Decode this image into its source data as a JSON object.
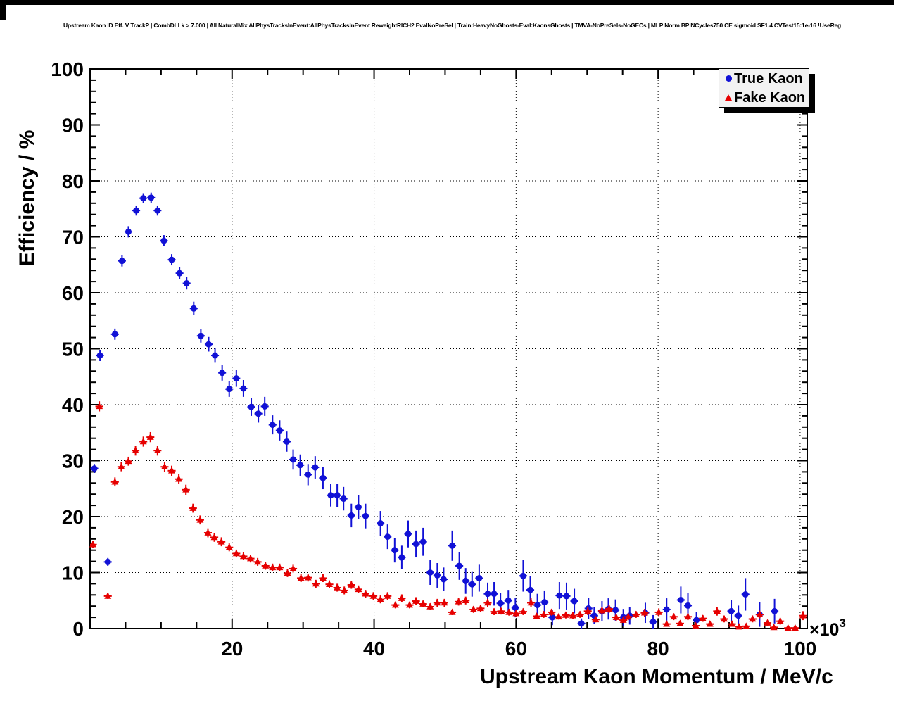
{
  "header": {
    "title": "Upstream Kaon ID Eff. V TrackP | CombDLLk > 7.000 | All NaturalMix AllPhysTracksInEvent:AllPhysTracksInEvent ReweightRICH2 EvalNoPreSel | Train:HeavyNoGhosts-Eval:KaonsGhosts | TMVA-NoPreSels-NoGECs | MLP Norm BP NCycles750 CE sigmoid SF1.4 CVTest15:1e-16 !UseReg"
  },
  "chart_data": {
    "type": "scatter",
    "title": "Upstream Kaon ID Eff. V TrackP",
    "xlabel": "Upstream Kaon Momentum / MeV/c",
    "ylabel": "Efficiency / %",
    "x_axis_multiplier": "×10³",
    "xlim": [
      0,
      101
    ],
    "ylim": [
      0,
      100
    ],
    "x_ticks": [
      20,
      40,
      60,
      80,
      100
    ],
    "y_ticks": [
      0,
      10,
      20,
      30,
      40,
      50,
      60,
      70,
      80,
      90,
      100
    ],
    "x_minor_step": 5,
    "y_minor_step": 2,
    "grid": "dotted-at-major-ticks",
    "x_error_half_width": 0.55,
    "legend": {
      "position": "top-right",
      "entries": [
        {
          "label": "True Kaon",
          "marker": "circle",
          "color": "#1111d6"
        },
        {
          "label": "Fake Kaon",
          "marker": "triangle",
          "color": "#e60000"
        }
      ]
    },
    "series": [
      {
        "name": "True Kaon",
        "marker": "circle",
        "color": "#1111d6",
        "points": [
          [
            0.6,
            28.6,
            0.8
          ],
          [
            1.4,
            48.8,
            1.0
          ],
          [
            2.5,
            11.9,
            0.7
          ],
          [
            3.5,
            52.6,
            1.0
          ],
          [
            4.5,
            65.7,
            1.0
          ],
          [
            5.4,
            70.9,
            1.0
          ],
          [
            6.5,
            74.7,
            0.9
          ],
          [
            7.5,
            76.9,
            0.9
          ],
          [
            8.6,
            77.0,
            0.9
          ],
          [
            9.5,
            74.7,
            0.9
          ],
          [
            10.4,
            69.3,
            1.0
          ],
          [
            11.5,
            65.9,
            1.0
          ],
          [
            12.6,
            63.5,
            1.1
          ],
          [
            13.6,
            61.7,
            1.1
          ],
          [
            14.6,
            57.2,
            1.2
          ],
          [
            15.6,
            52.3,
            1.2
          ],
          [
            16.7,
            50.8,
            1.3
          ],
          [
            17.6,
            48.8,
            1.3
          ],
          [
            18.6,
            45.7,
            1.4
          ],
          [
            19.6,
            42.8,
            1.4
          ],
          [
            20.6,
            44.7,
            1.5
          ],
          [
            21.6,
            42.9,
            1.5
          ],
          [
            22.7,
            39.6,
            1.6
          ],
          [
            23.7,
            38.4,
            1.6
          ],
          [
            24.6,
            39.7,
            1.7
          ],
          [
            25.7,
            36.4,
            1.7
          ],
          [
            26.7,
            35.4,
            1.8
          ],
          [
            27.7,
            33.4,
            1.8
          ],
          [
            28.6,
            30.2,
            1.8
          ],
          [
            29.6,
            29.2,
            1.9
          ],
          [
            30.7,
            27.5,
            1.9
          ],
          [
            31.7,
            28.8,
            2.0
          ],
          [
            32.8,
            26.9,
            2.0
          ],
          [
            33.9,
            23.8,
            2.0
          ],
          [
            34.8,
            23.8,
            2.1
          ],
          [
            35.7,
            23.2,
            2.1
          ],
          [
            36.8,
            20.2,
            2.1
          ],
          [
            37.8,
            21.7,
            2.2
          ],
          [
            38.8,
            20.1,
            2.2
          ],
          [
            40.9,
            18.8,
            2.2
          ],
          [
            41.9,
            16.4,
            2.2
          ],
          [
            42.9,
            14.0,
            2.2
          ],
          [
            43.9,
            12.7,
            2.1
          ],
          [
            44.8,
            16.9,
            2.4
          ],
          [
            45.9,
            15.1,
            2.4
          ],
          [
            46.9,
            15.5,
            2.5
          ],
          [
            47.9,
            10.0,
            2.2
          ],
          [
            48.9,
            9.5,
            2.2
          ],
          [
            49.8,
            8.8,
            2.1
          ],
          [
            51.0,
            14.8,
            2.7
          ],
          [
            52.0,
            11.2,
            2.5
          ],
          [
            52.9,
            8.5,
            2.3
          ],
          [
            53.8,
            7.9,
            2.2
          ],
          [
            54.8,
            9.0,
            2.4
          ],
          [
            56.0,
            6.2,
            2.0
          ],
          [
            56.9,
            6.2,
            2.1
          ],
          [
            57.8,
            4.5,
            1.8
          ],
          [
            58.9,
            5.0,
            1.9
          ],
          [
            59.9,
            3.7,
            1.7
          ],
          [
            61.0,
            9.4,
            2.8
          ],
          [
            62.0,
            6.9,
            2.5
          ],
          [
            63.0,
            4.2,
            2.0
          ],
          [
            64.0,
            4.7,
            2.1
          ],
          [
            65.1,
            2.0,
            1.4
          ],
          [
            66.1,
            5.9,
            2.4
          ],
          [
            67.1,
            5.8,
            2.4
          ],
          [
            68.2,
            4.9,
            2.2
          ],
          [
            69.2,
            0.9,
            0.9
          ],
          [
            70.2,
            3.6,
            1.9
          ],
          [
            71.0,
            2.3,
            1.5
          ],
          [
            72.1,
            3.1,
            1.8
          ],
          [
            73.0,
            3.5,
            1.9
          ],
          [
            74.0,
            3.3,
            1.9
          ],
          [
            75.1,
            2.0,
            1.5
          ],
          [
            76.0,
            2.3,
            1.6
          ],
          [
            78.2,
            2.8,
            1.8
          ],
          [
            79.3,
            1.2,
            1.2
          ],
          [
            81.2,
            3.4,
            2.0
          ],
          [
            83.2,
            5.1,
            2.4
          ],
          [
            84.2,
            4.1,
            2.2
          ],
          [
            85.4,
            1.5,
            1.5
          ],
          [
            90.3,
            3.1,
            2.0
          ],
          [
            91.3,
            2.3,
            1.8
          ],
          [
            92.3,
            6.1,
            2.9
          ],
          [
            94.3,
            2.5,
            2.2
          ],
          [
            96.4,
            3.1,
            2.2
          ]
        ]
      },
      {
        "name": "Fake Kaon",
        "marker": "triangle",
        "color": "#e60000",
        "points": [
          [
            0.4,
            15.0,
            0.6
          ],
          [
            1.3,
            39.7,
            0.9
          ],
          [
            2.5,
            5.8,
            0.5
          ],
          [
            3.5,
            26.2,
            0.8
          ],
          [
            4.4,
            28.9,
            0.8
          ],
          [
            5.4,
            29.9,
            0.8
          ],
          [
            6.4,
            31.8,
            0.9
          ],
          [
            7.5,
            33.4,
            0.9
          ],
          [
            8.5,
            34.2,
            0.9
          ],
          [
            9.5,
            31.8,
            0.9
          ],
          [
            10.5,
            28.9,
            0.9
          ],
          [
            11.5,
            28.2,
            0.9
          ],
          [
            12.5,
            26.7,
            0.9
          ],
          [
            13.5,
            24.8,
            0.9
          ],
          [
            14.5,
            21.5,
            0.8
          ],
          [
            15.5,
            19.4,
            0.8
          ],
          [
            16.6,
            17.1,
            0.8
          ],
          [
            17.5,
            16.3,
            0.8
          ],
          [
            18.5,
            15.5,
            0.8
          ],
          [
            19.6,
            14.5,
            0.7
          ],
          [
            20.6,
            13.4,
            0.7
          ],
          [
            21.6,
            12.9,
            0.7
          ],
          [
            22.6,
            12.5,
            0.7
          ],
          [
            23.6,
            11.9,
            0.7
          ],
          [
            24.7,
            11.2,
            0.7
          ],
          [
            25.7,
            10.9,
            0.7
          ],
          [
            26.7,
            10.9,
            0.7
          ],
          [
            27.8,
            9.9,
            0.7
          ],
          [
            28.6,
            10.7,
            0.7
          ],
          [
            29.7,
            9.0,
            0.7
          ],
          [
            30.7,
            9.1,
            0.7
          ],
          [
            31.8,
            8.0,
            0.7
          ],
          [
            32.8,
            9.0,
            0.7
          ],
          [
            33.7,
            7.9,
            0.7
          ],
          [
            34.8,
            7.3,
            0.7
          ],
          [
            35.8,
            6.8,
            0.7
          ],
          [
            36.8,
            7.8,
            0.7
          ],
          [
            37.8,
            7.0,
            0.7
          ],
          [
            38.8,
            6.2,
            0.7
          ],
          [
            39.9,
            5.8,
            0.7
          ],
          [
            40.9,
            5.2,
            0.7
          ],
          [
            41.9,
            5.8,
            0.7
          ],
          [
            43.0,
            4.2,
            0.6
          ],
          [
            43.9,
            5.4,
            0.7
          ],
          [
            45.0,
            4.2,
            0.6
          ],
          [
            45.9,
            4.9,
            0.7
          ],
          [
            46.9,
            4.4,
            0.6
          ],
          [
            47.9,
            3.9,
            0.6
          ],
          [
            48.9,
            4.6,
            0.7
          ],
          [
            49.9,
            4.6,
            0.7
          ],
          [
            51.0,
            2.9,
            0.5
          ],
          [
            51.9,
            4.8,
            0.7
          ],
          [
            52.9,
            5.0,
            0.7
          ],
          [
            54.0,
            3.4,
            0.6
          ],
          [
            55.0,
            3.6,
            0.6
          ],
          [
            56.0,
            4.6,
            0.7
          ],
          [
            56.9,
            3.0,
            0.6
          ],
          [
            57.9,
            3.1,
            0.6
          ],
          [
            59.0,
            2.9,
            0.6
          ],
          [
            60.0,
            2.7,
            0.6
          ],
          [
            61.0,
            3.0,
            0.6
          ],
          [
            62.1,
            4.6,
            0.8
          ],
          [
            62.9,
            2.2,
            0.5
          ],
          [
            63.9,
            2.5,
            0.6
          ],
          [
            65.0,
            2.9,
            0.6
          ],
          [
            66.0,
            2.1,
            0.5
          ],
          [
            67.0,
            2.4,
            0.6
          ],
          [
            68.0,
            2.3,
            0.6
          ],
          [
            69.0,
            2.5,
            0.6
          ],
          [
            70.1,
            3.1,
            0.7
          ],
          [
            71.2,
            1.6,
            0.5
          ],
          [
            72.1,
            3.2,
            0.7
          ],
          [
            73.1,
            3.5,
            0.7
          ],
          [
            74.1,
            2.0,
            0.6
          ],
          [
            75.1,
            1.5,
            0.5
          ],
          [
            75.8,
            2.1,
            0.6
          ],
          [
            76.9,
            2.5,
            0.6
          ],
          [
            78.1,
            2.8,
            0.7
          ],
          [
            80.1,
            2.9,
            0.7
          ],
          [
            81.2,
            0.8,
            0.4
          ],
          [
            82.2,
            2.1,
            0.6
          ],
          [
            83.1,
            0.9,
            0.4
          ],
          [
            84.2,
            2.1,
            0.6
          ],
          [
            85.3,
            0.5,
            0.3
          ],
          [
            86.3,
            1.8,
            0.6
          ],
          [
            87.3,
            0.8,
            0.4
          ],
          [
            88.3,
            3.1,
            0.8
          ],
          [
            89.3,
            1.7,
            0.6
          ],
          [
            90.4,
            0.8,
            0.4
          ],
          [
            91.4,
            0.3,
            0.3
          ],
          [
            92.4,
            0.4,
            0.3
          ],
          [
            93.3,
            1.7,
            0.6
          ],
          [
            94.3,
            2.5,
            0.7
          ],
          [
            95.4,
            1.0,
            0.5
          ],
          [
            96.3,
            0.2,
            0.2
          ],
          [
            97.2,
            1.3,
            0.6
          ],
          [
            98.3,
            0.1,
            0.1
          ],
          [
            99.3,
            0.1,
            0.1
          ],
          [
            100.4,
            2.3,
            0.8
          ]
        ]
      }
    ]
  }
}
